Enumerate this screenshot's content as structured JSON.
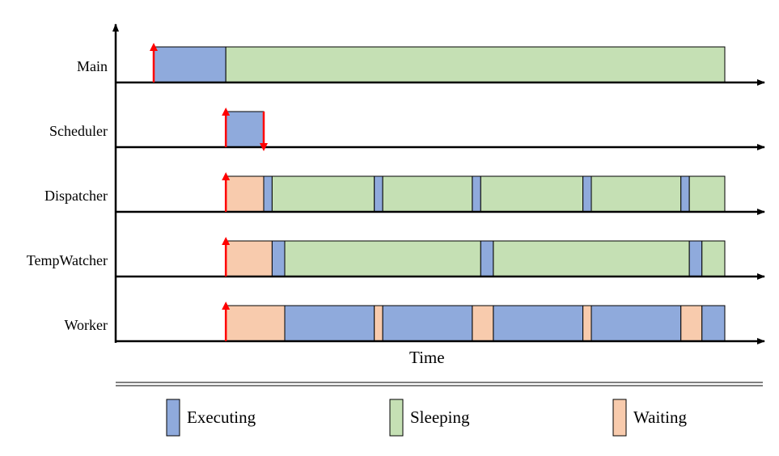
{
  "time_label": "Time",
  "colors": {
    "Executing": "#8faadc",
    "Sleeping": "#c5e0b4",
    "Waiting": "#f8cbad",
    "event_arrow": "#ff0000",
    "axis": "#000000",
    "segment_border": "#000000"
  },
  "legend": [
    {
      "state": "Executing",
      "label": "Executing"
    },
    {
      "state": "Sleeping",
      "label": "Sleeping"
    },
    {
      "state": "Waiting",
      "label": "Waiting"
    }
  ],
  "timeline": {
    "rows": [
      {
        "name": "Main",
        "events": [
          {
            "t": 0.05,
            "dir": "up"
          }
        ],
        "segments": [
          {
            "state": "Executing",
            "start": 0.05,
            "end": 0.17
          },
          {
            "state": "Sleeping",
            "start": 0.17,
            "end": 1.0
          }
        ]
      },
      {
        "name": "Scheduler",
        "events": [
          {
            "t": 0.17,
            "dir": "up"
          },
          {
            "t": 0.233,
            "dir": "down"
          }
        ],
        "segments": [
          {
            "state": "Executing",
            "start": 0.17,
            "end": 0.233
          }
        ]
      },
      {
        "name": "Dispatcher",
        "events": [
          {
            "t": 0.17,
            "dir": "up"
          }
        ],
        "segments": [
          {
            "state": "Waiting",
            "start": 0.17,
            "end": 0.233
          },
          {
            "state": "Executing",
            "start": 0.233,
            "end": 0.247
          },
          {
            "state": "Sleeping",
            "start": 0.247,
            "end": 0.417
          },
          {
            "state": "Executing",
            "start": 0.417,
            "end": 0.431
          },
          {
            "state": "Sleeping",
            "start": 0.431,
            "end": 0.58
          },
          {
            "state": "Executing",
            "start": 0.58,
            "end": 0.594
          },
          {
            "state": "Sleeping",
            "start": 0.594,
            "end": 0.764
          },
          {
            "state": "Executing",
            "start": 0.764,
            "end": 0.778
          },
          {
            "state": "Sleeping",
            "start": 0.778,
            "end": 0.927
          },
          {
            "state": "Executing",
            "start": 0.927,
            "end": 0.941
          },
          {
            "state": "Sleeping",
            "start": 0.941,
            "end": 1.0
          }
        ]
      },
      {
        "name": "TempWatcher",
        "events": [
          {
            "t": 0.17,
            "dir": "up"
          }
        ],
        "segments": [
          {
            "state": "Waiting",
            "start": 0.17,
            "end": 0.247
          },
          {
            "state": "Executing",
            "start": 0.247,
            "end": 0.268
          },
          {
            "state": "Sleeping",
            "start": 0.268,
            "end": 0.594
          },
          {
            "state": "Executing",
            "start": 0.594,
            "end": 0.615
          },
          {
            "state": "Sleeping",
            "start": 0.615,
            "end": 0.941
          },
          {
            "state": "Executing",
            "start": 0.941,
            "end": 0.962
          },
          {
            "state": "Sleeping",
            "start": 0.962,
            "end": 1.0
          }
        ]
      },
      {
        "name": "Worker",
        "events": [
          {
            "t": 0.17,
            "dir": "up"
          }
        ],
        "segments": [
          {
            "state": "Waiting",
            "start": 0.17,
            "end": 0.268
          },
          {
            "state": "Executing",
            "start": 0.268,
            "end": 0.417
          },
          {
            "state": "Waiting",
            "start": 0.417,
            "end": 0.431
          },
          {
            "state": "Executing",
            "start": 0.431,
            "end": 0.58
          },
          {
            "state": "Waiting",
            "start": 0.58,
            "end": 0.615
          },
          {
            "state": "Executing",
            "start": 0.615,
            "end": 0.764
          },
          {
            "state": "Waiting",
            "start": 0.764,
            "end": 0.778
          },
          {
            "state": "Executing",
            "start": 0.778,
            "end": 0.927
          },
          {
            "state": "Waiting",
            "start": 0.927,
            "end": 0.962
          },
          {
            "state": "Executing",
            "start": 0.962,
            "end": 1.0
          }
        ]
      }
    ]
  }
}
